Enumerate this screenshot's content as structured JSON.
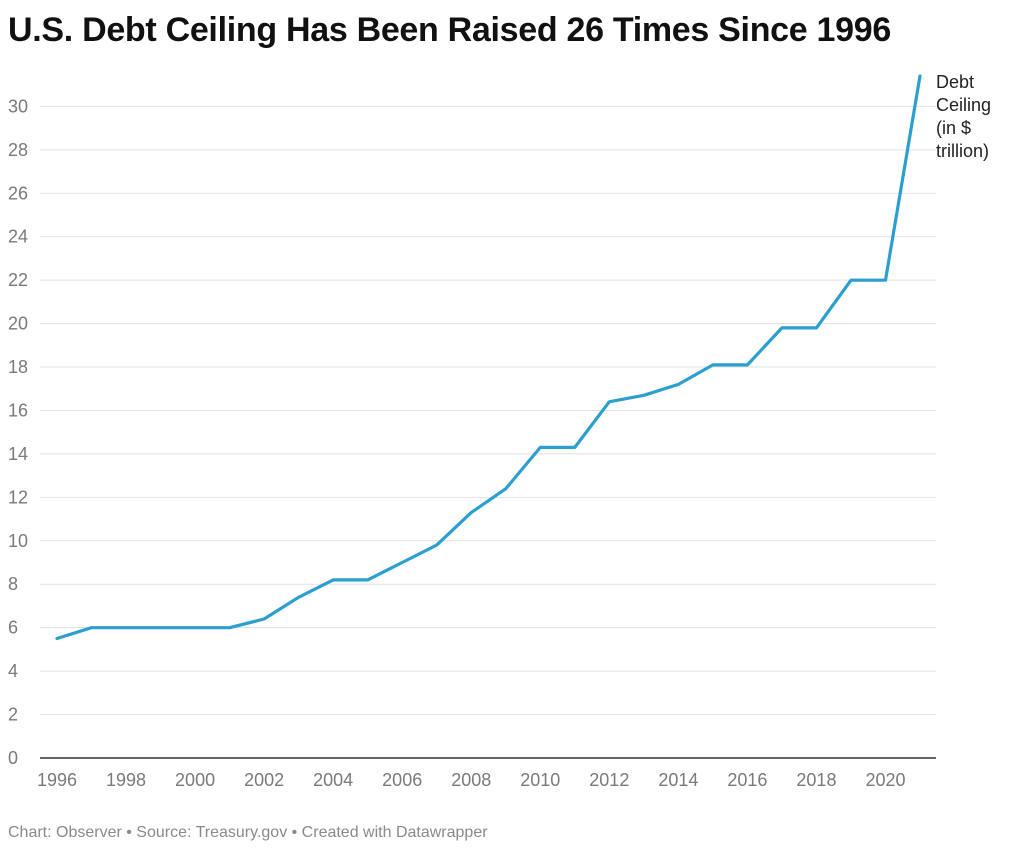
{
  "footer": "Chart: Observer • Source: Treasury.gov • Created with Datawrapper",
  "chart_data": {
    "type": "line",
    "title": "U.S. Debt Ceiling Has Been Raised 26 Times Since 1996",
    "xlabel": "",
    "ylabel": "",
    "xlim": [
      1996,
      2021
    ],
    "ylim": [
      0,
      31.4
    ],
    "grid": true,
    "y_ticks": [
      0,
      2,
      4,
      6,
      8,
      10,
      12,
      14,
      16,
      18,
      20,
      22,
      24,
      26,
      28,
      30
    ],
    "x_ticks": [
      1996,
      1998,
      2000,
      2002,
      2004,
      2006,
      2008,
      2010,
      2012,
      2014,
      2016,
      2018,
      2020
    ],
    "series": [
      {
        "name": "Debt Ceiling (in $ trillion)",
        "label_lines": [
          "Debt",
          "Ceiling",
          "(in $",
          "trillion)"
        ],
        "color": "#2a9fd0",
        "x": [
          1996,
          1997,
          1998,
          1999,
          2000,
          2001,
          2002,
          2003,
          2004,
          2005,
          2006,
          2007,
          2008,
          2009,
          2010,
          2011,
          2012,
          2013,
          2014,
          2015,
          2016,
          2017,
          2018,
          2019,
          2020,
          2021
        ],
        "values": [
          5.5,
          6.0,
          6.0,
          6.0,
          6.0,
          6.0,
          6.4,
          7.4,
          8.2,
          8.2,
          9.0,
          9.8,
          11.3,
          12.4,
          14.3,
          14.3,
          16.4,
          16.7,
          17.2,
          18.1,
          18.1,
          19.8,
          19.8,
          22.0,
          22.0,
          31.4
        ]
      }
    ]
  }
}
